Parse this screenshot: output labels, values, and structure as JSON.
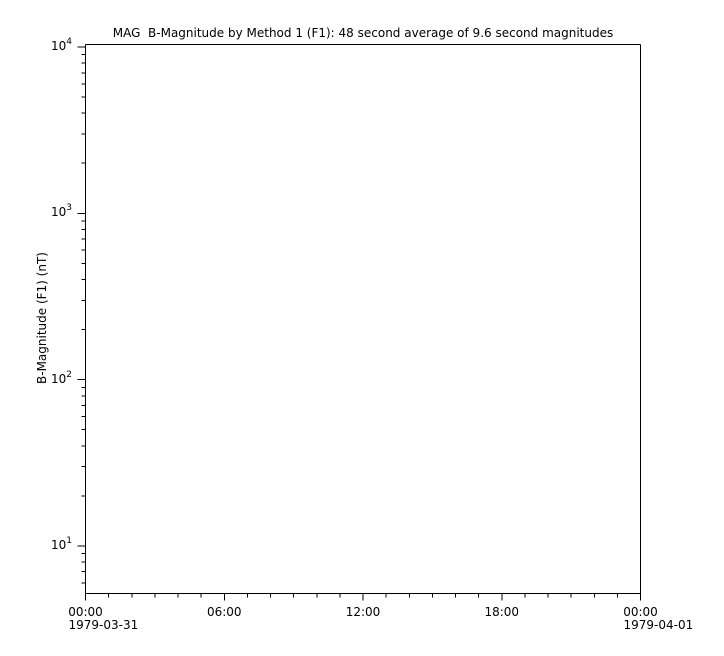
{
  "figure": {
    "background_color": "#ffffff",
    "axis_color": "#000000",
    "text_color": "#000000"
  },
  "chart_data": {
    "type": "line",
    "title": "MAG  B-Magnitude by Method 1 (F1): 48 second average of 9.6 second magnitudes",
    "xlabel": "",
    "ylabel": "B-Magnitude (F1) (nT)",
    "grid": false,
    "frame": "box",
    "y_scale": "log",
    "ylim": [
      5.18,
      10350
    ],
    "y_major_ticks": [
      {
        "value": 10000,
        "label_base": "10",
        "label_exp": "4"
      },
      {
        "value": 1000,
        "label_base": "10",
        "label_exp": "3"
      },
      {
        "value": 100,
        "label_base": "10",
        "label_exp": "2"
      },
      {
        "value": 10,
        "label_base": "10",
        "label_exp": "1"
      }
    ],
    "y_minor_tick_mantissas": [
      2,
      3,
      4,
      5,
      6,
      7,
      8,
      9
    ],
    "y_minor_tick_decade_exponents": [
      0,
      1,
      2,
      3
    ],
    "x_axis": {
      "span_hours": 24,
      "minor_tick_interval_hours": 1,
      "major_ticks": [
        {
          "hour": 0,
          "label": "00:00",
          "date": "1979-03-31"
        },
        {
          "hour": 6,
          "label": "06:00"
        },
        {
          "hour": 12,
          "label": "12:00"
        },
        {
          "hour": 18,
          "label": "18:00"
        },
        {
          "hour": 24,
          "label": "00:00",
          "date": "1979-04-01"
        }
      ]
    },
    "series": []
  }
}
